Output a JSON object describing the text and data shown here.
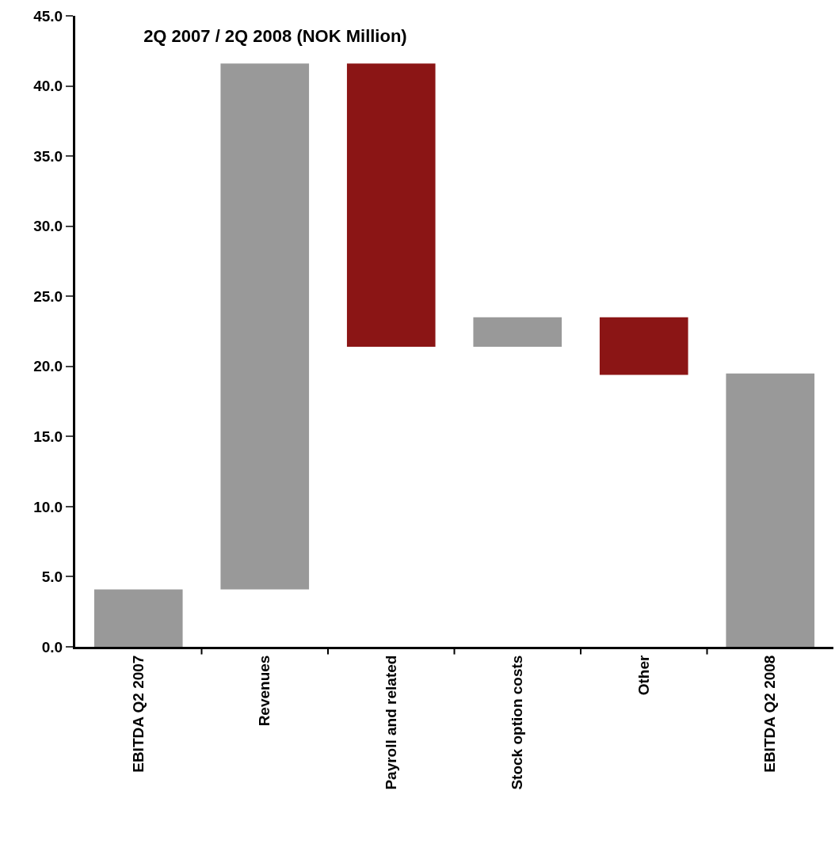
{
  "chart_data": {
    "type": "bar",
    "title": "2Q 2007 / 2Q 2008 (NOK Million)",
    "categories": [
      "EBITDA Q2 2007",
      "Revenues",
      "Payroll and related",
      "Stock option costs",
      "Other",
      "EBITDA Q2 2008"
    ],
    "values": [
      4.1,
      37.5,
      -20.2,
      2.1,
      -4.1,
      19.5
    ],
    "base": [
      0,
      4.1,
      41.6,
      21.4,
      23.5,
      0
    ],
    "colors": [
      "#999999",
      "#999999",
      "#8b1515",
      "#999999",
      "#8b1515",
      "#999999"
    ],
    "ylim": [
      0,
      45
    ],
    "yticks": [
      {
        "value": 0,
        "label": "0.0"
      },
      {
        "value": 5,
        "label": "5.0"
      },
      {
        "value": 10,
        "label": "10.0"
      },
      {
        "value": 15,
        "label": "15.0"
      },
      {
        "value": 20,
        "label": "20.0"
      },
      {
        "value": 25,
        "label": "25.0"
      },
      {
        "value": 30,
        "label": "30.0"
      },
      {
        "value": 35,
        "label": "35.0"
      },
      {
        "value": 40,
        "label": "40.0"
      },
      {
        "value": 45,
        "label": "45.0"
      }
    ],
    "grid": false
  }
}
